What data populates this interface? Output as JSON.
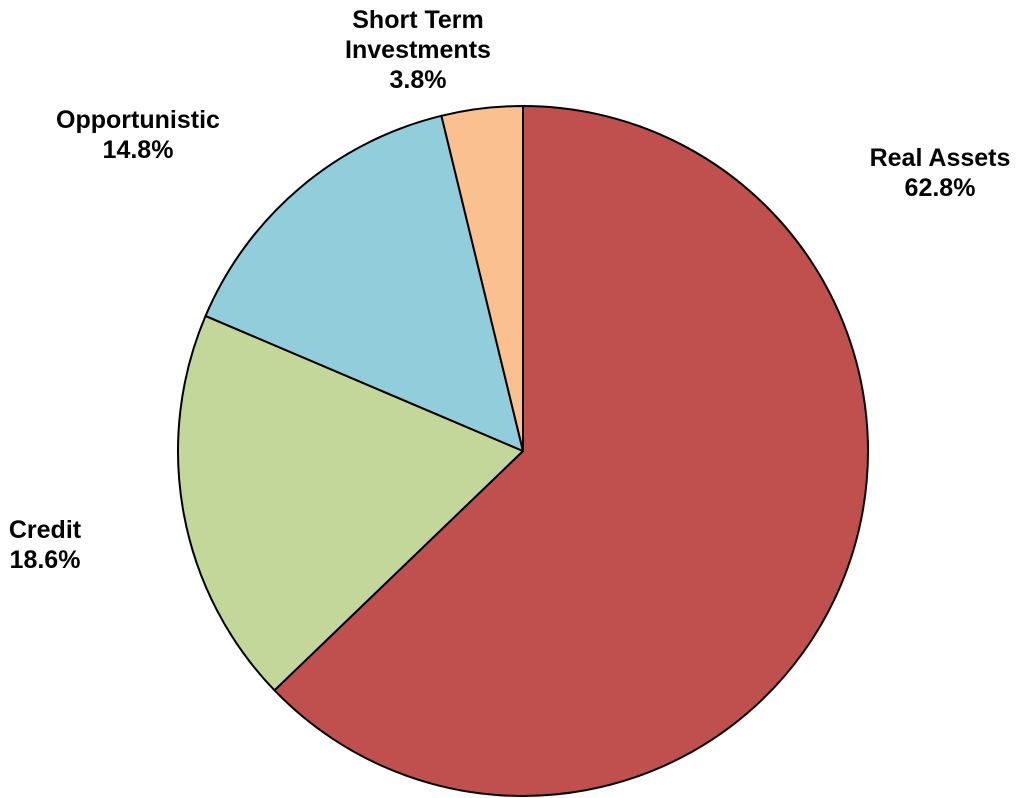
{
  "chart_data": {
    "type": "pie",
    "start": "top",
    "direction": "clockwise",
    "legend": "none",
    "slices": [
      {
        "name": "Real Assets",
        "value": 62.8,
        "value_label": "62.8%",
        "color": "#C0504D",
        "label_lines": [
          "Real Assets"
        ]
      },
      {
        "name": "Credit",
        "value": 18.6,
        "value_label": "18.6%",
        "color": "#C4D79B",
        "label_lines": [
          "Credit"
        ]
      },
      {
        "name": "Opportunistic",
        "value": 14.8,
        "value_label": "14.8%",
        "color": "#92CDDC",
        "label_lines": [
          "Opportunistic"
        ]
      },
      {
        "name": "Short Term Investments",
        "value": 3.8,
        "value_label": "3.8%",
        "color": "#FAC090",
        "label_lines": [
          "Short Term",
          "Investments"
        ]
      }
    ]
  }
}
